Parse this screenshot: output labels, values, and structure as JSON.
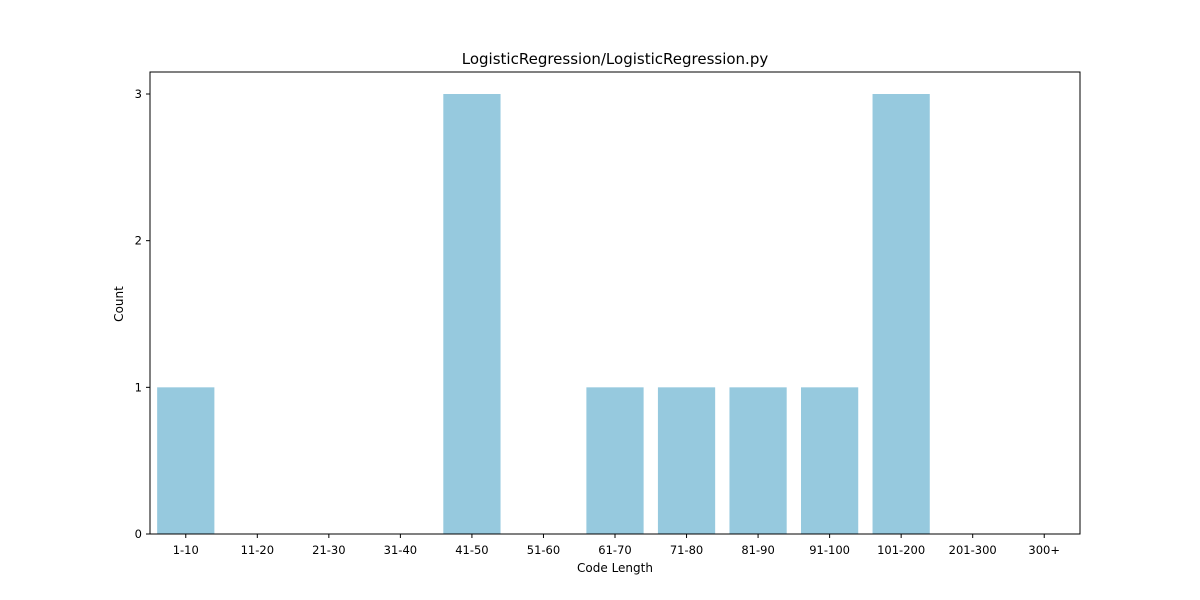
{
  "chart_data": {
    "type": "bar",
    "title": "LogisticRegression/LogisticRegression.py",
    "xlabel": "Code Length",
    "ylabel": "Count",
    "categories": [
      "1-10",
      "11-20",
      "21-30",
      "31-40",
      "41-50",
      "51-60",
      "61-70",
      "71-80",
      "81-90",
      "91-100",
      "101-200",
      "201-300",
      "300+"
    ],
    "values": [
      1,
      0,
      0,
      0,
      3,
      0,
      1,
      1,
      1,
      1,
      3,
      0,
      0
    ],
    "yticks": [
      0,
      1,
      2,
      3
    ],
    "ylim": [
      0,
      3.15
    ],
    "grid": false,
    "bar_color": "#96c9de"
  }
}
